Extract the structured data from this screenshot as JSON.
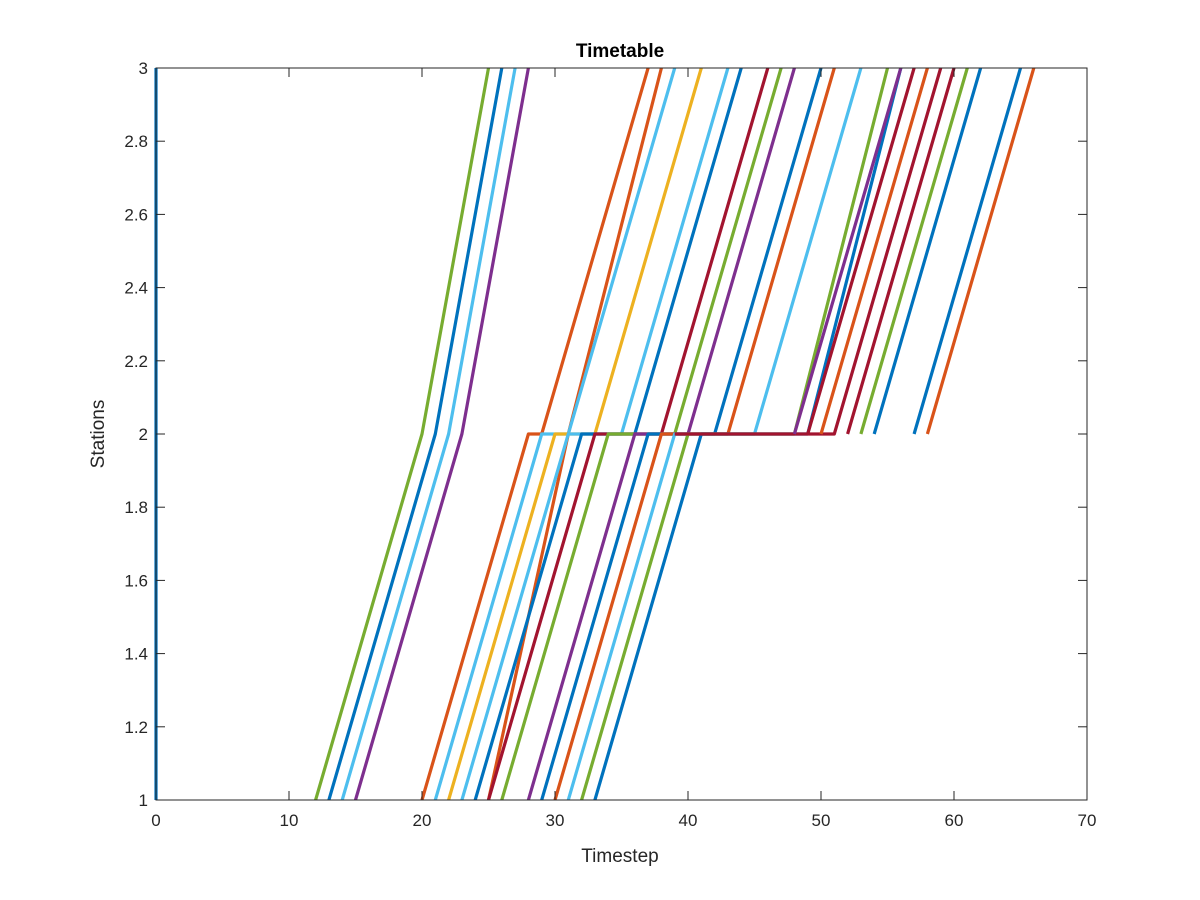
{
  "chart_data": {
    "type": "line",
    "title": "Timetable",
    "xlabel": "Timestep",
    "ylabel": "Stations",
    "xlim": [
      0,
      70
    ],
    "ylim": [
      1,
      3
    ],
    "xticks": [
      "0",
      "10",
      "20",
      "30",
      "40",
      "50",
      "60",
      "70"
    ],
    "yticks": [
      "1",
      "1.2",
      "1.4",
      "1.6",
      "1.8",
      "2",
      "2.2",
      "2.4",
      "2.6",
      "2.8",
      "3"
    ],
    "grid": false,
    "legend": "none",
    "palette": [
      "#0072BD",
      "#D95319",
      "#EDB120",
      "#7E2F8E",
      "#77AC30",
      "#4DBEEE",
      "#A2142F"
    ],
    "series": [
      {
        "color": "#0072BD",
        "points": [
          [
            0,
            1
          ],
          [
            0,
            3
          ]
        ]
      },
      {
        "color": "#77AC30",
        "points": [
          [
            12,
            1
          ],
          [
            20,
            2
          ],
          [
            25,
            3
          ]
        ]
      },
      {
        "color": "#0072BD",
        "points": [
          [
            13,
            1
          ],
          [
            21,
            2
          ],
          [
            26,
            3
          ]
        ]
      },
      {
        "color": "#4DBEEE",
        "points": [
          [
            14,
            1
          ],
          [
            22,
            2
          ],
          [
            27,
            3
          ]
        ]
      },
      {
        "color": "#7E2F8E",
        "points": [
          [
            15,
            1
          ],
          [
            23,
            2
          ],
          [
            28,
            3
          ]
        ]
      },
      {
        "color": "#D95319",
        "points": [
          [
            25,
            1
          ],
          [
            31,
            2
          ],
          [
            38,
            3
          ]
        ]
      },
      {
        "color": "#D95319",
        "points": [
          [
            20,
            1
          ],
          [
            28,
            2
          ],
          [
            29,
            2
          ],
          [
            37,
            3
          ]
        ]
      },
      {
        "color": "#4DBEEE",
        "points": [
          [
            21,
            1
          ],
          [
            29,
            2
          ],
          [
            31,
            2
          ],
          [
            39,
            3
          ]
        ]
      },
      {
        "color": "#EDB120",
        "points": [
          [
            22,
            1
          ],
          [
            30,
            2
          ],
          [
            33,
            2
          ],
          [
            41,
            3
          ]
        ]
      },
      {
        "color": "#4DBEEE",
        "points": [
          [
            23,
            1
          ],
          [
            31,
            2
          ],
          [
            35,
            2
          ],
          [
            43,
            3
          ]
        ]
      },
      {
        "color": "#0072BD",
        "points": [
          [
            24,
            1
          ],
          [
            32,
            2
          ],
          [
            36,
            2
          ],
          [
            44,
            3
          ]
        ]
      },
      {
        "color": "#A2142F",
        "points": [
          [
            25,
            1
          ],
          [
            33,
            2
          ],
          [
            38,
            2
          ],
          [
            46,
            3
          ]
        ]
      },
      {
        "color": "#77AC30",
        "points": [
          [
            26,
            1
          ],
          [
            34,
            2
          ],
          [
            39,
            2
          ],
          [
            47,
            3
          ]
        ]
      },
      {
        "color": "#7E2F8E",
        "points": [
          [
            28,
            1
          ],
          [
            36,
            2
          ],
          [
            40,
            2
          ],
          [
            48,
            3
          ]
        ]
      },
      {
        "color": "#0072BD",
        "points": [
          [
            29,
            1
          ],
          [
            37,
            2
          ],
          [
            42,
            2
          ],
          [
            50,
            3
          ]
        ]
      },
      {
        "color": "#D95319",
        "points": [
          [
            30,
            1
          ],
          [
            38,
            2
          ],
          [
            43,
            2
          ],
          [
            51,
            3
          ]
        ]
      },
      {
        "color": "#4DBEEE",
        "points": [
          [
            31,
            1
          ],
          [
            39,
            2
          ],
          [
            45,
            2
          ],
          [
            53,
            3
          ]
        ]
      },
      {
        "color": "#77AC30",
        "points": [
          [
            32,
            1
          ],
          [
            40,
            2
          ],
          [
            48,
            2
          ],
          [
            55,
            3
          ]
        ]
      },
      {
        "color": "#0072BD",
        "points": [
          [
            33,
            1
          ],
          [
            41,
            2
          ],
          [
            49,
            2
          ],
          [
            56,
            3
          ]
        ]
      },
      {
        "color": "#A2142F",
        "points": [
          [
            39,
            2
          ],
          [
            51,
            2
          ],
          [
            59,
            3
          ]
        ]
      },
      {
        "color": "#7E2F8E",
        "points": [
          [
            48,
            2
          ],
          [
            56,
            3
          ]
        ]
      },
      {
        "color": "#A2142F",
        "points": [
          [
            49,
            2
          ],
          [
            57,
            3
          ]
        ]
      },
      {
        "color": "#D95319",
        "points": [
          [
            50,
            2
          ],
          [
            58,
            3
          ]
        ]
      },
      {
        "color": "#A2142F",
        "points": [
          [
            52,
            2
          ],
          [
            60,
            3
          ]
        ]
      },
      {
        "color": "#77AC30",
        "points": [
          [
            53,
            2
          ],
          [
            61,
            3
          ]
        ]
      },
      {
        "color": "#0072BD",
        "points": [
          [
            54,
            2
          ],
          [
            62,
            3
          ]
        ]
      },
      {
        "color": "#0072BD",
        "points": [
          [
            57,
            2
          ],
          [
            65,
            3
          ]
        ]
      },
      {
        "color": "#D95319",
        "points": [
          [
            58,
            2
          ],
          [
            66,
            3
          ]
        ]
      }
    ]
  }
}
